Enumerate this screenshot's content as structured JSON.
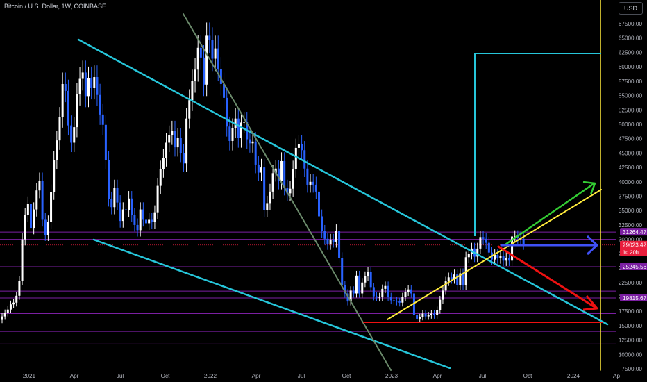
{
  "header": {
    "symbol_title": "Bitcoin / U.S. Dollar, 1W, COINBASE",
    "currency_button": "USD"
  },
  "chart_data": {
    "type": "candlestick",
    "title": "Bitcoin / U.S. Dollar, 1W, COINBASE",
    "y_axis_labels": [
      "67500.00",
      "65000.00",
      "62500.00",
      "60000.00",
      "57500.00",
      "55000.00",
      "52500.00",
      "50000.00",
      "47500.00",
      "45000.00",
      "42500.00",
      "40000.00",
      "37500.00",
      "35000.00",
      "32500.00",
      "30000.00",
      "27500.00",
      "25000.00",
      "22500.00",
      "20000.00",
      "17500.00",
      "15000.00",
      "12500.00",
      "10000.00",
      "7500.00"
    ],
    "y_axis_values": [
      67500,
      65000,
      62500,
      60000,
      57500,
      55000,
      52500,
      50000,
      47500,
      45000,
      42500,
      40000,
      37500,
      35000,
      32500,
      30000,
      27500,
      25000,
      22500,
      20000,
      17500,
      15000,
      12500,
      10000,
      7500
    ],
    "x_axis_labels": [
      "2021",
      "Apr",
      "Jul",
      "Oct",
      "2022",
      "Apr",
      "Jul",
      "Oct",
      "2023",
      "Apr",
      "Jul",
      "Oct",
      "2024",
      "Ap"
    ],
    "ylim": [
      7000,
      69500
    ],
    "price_labels": [
      {
        "text": "31264.47",
        "value": 31264.47,
        "color": "#7b1fa2"
      },
      {
        "text": "29023.42",
        "value": 29023.42,
        "color": "#e91e3c"
      },
      {
        "text": "25245.56",
        "value": 25245.56,
        "color": "#7b1fa2"
      },
      {
        "text": "19815.67",
        "value": 19815.67,
        "color": "#7b1fa2"
      }
    ],
    "countdown_label": "1d 20h",
    "current_price": 29023.42,
    "horizontal_levels": [
      31264.47,
      30000,
      25245.56,
      21000,
      19815.67,
      17100,
      14000,
      11800
    ],
    "series_close": [
      16600,
      17200,
      17800,
      18700,
      19000,
      20200,
      22800,
      30000,
      34200,
      36200,
      32000,
      35200,
      38500,
      40200,
      33400,
      30800,
      33000,
      38200,
      43800,
      47200,
      51200,
      57000,
      55800,
      49800,
      46800,
      49500,
      55200,
      57900,
      59000,
      54900,
      58000,
      56300,
      58200,
      55100,
      51700,
      49900,
      43800,
      37000,
      35600,
      39000,
      36400,
      33200,
      35200,
      35100,
      37100,
      34200,
      32500,
      31600,
      35200,
      33400,
      32800,
      33400,
      33000,
      34700,
      39300,
      42200,
      44200,
      46800,
      48100,
      48900,
      46000,
      47700,
      45000,
      43200,
      51000,
      54200,
      57500,
      59500,
      63300,
      61600,
      56900,
      65400,
      64600,
      61400,
      63200,
      59600,
      57000,
      54600,
      49600,
      47100,
      49300,
      51000,
      47600,
      50300,
      50400,
      47400,
      46700,
      47000,
      43000,
      41600,
      42500,
      35100,
      36300,
      38300,
      41500,
      42300,
      40100,
      43600,
      39000,
      38000,
      38800,
      42200,
      45900,
      46500,
      45500,
      42300,
      39500,
      40000,
      39500,
      38300,
      34000,
      31400,
      30100,
      29200,
      29900,
      29600,
      31500,
      26800,
      22000,
      20600,
      19200,
      21100,
      20600,
      23700,
      20600,
      22500,
      23600,
      24300,
      21700,
      20100,
      19900,
      20000,
      21400,
      21900,
      20000,
      19400,
      19300,
      19200,
      19000,
      20000,
      20900,
      21300,
      20600,
      16800,
      16200,
      16500,
      17100,
      16600,
      16800,
      17100,
      16800,
      17700,
      19500,
      21100,
      22700,
      23400,
      23100,
      23900,
      22000,
      24100,
      22000,
      26900,
      27500,
      28400,
      27000,
      28400,
      30400,
      30100,
      29400,
      27700,
      26500,
      27300,
      26700,
      27100,
      26300,
      26800,
      26300,
      30500,
      30500,
      30300,
      30100,
      29200
    ],
    "annotations": [
      {
        "kind": "descending-channel-upper",
        "color": "#26c6da"
      },
      {
        "kind": "descending-channel-lower",
        "color": "#26c6da"
      },
      {
        "kind": "bear-trendline",
        "color": "#6b8a6b"
      },
      {
        "kind": "ascending-support",
        "color": "#ffeb3b"
      },
      {
        "kind": "bull-arrow",
        "color": "#33cc33"
      },
      {
        "kind": "sideways-arrow",
        "color": "#3f51f5"
      },
      {
        "kind": "bear-arrow",
        "color": "#ee1111"
      },
      {
        "kind": "support-15000",
        "color": "#ee1111"
      },
      {
        "kind": "projection-box",
        "color": "#26c6da"
      },
      {
        "kind": "time-marker",
        "color": "#ffeb3b"
      }
    ]
  },
  "colors": {
    "background": "#000000",
    "bull_candle": "#ffffff",
    "bear_candle": "#2962ff",
    "channel": "#26c6da",
    "level_lines": "#7b1fa2",
    "axis_text": "#b2b5be"
  }
}
